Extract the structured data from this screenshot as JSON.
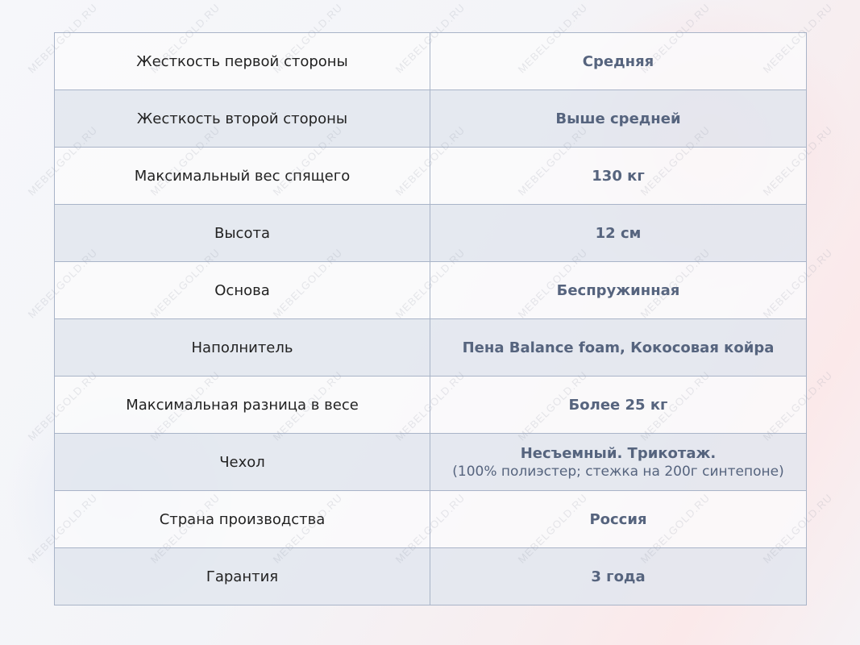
{
  "watermark": "MEBELGOLD.RU",
  "colors": {
    "value_text": "#56647e",
    "label_text": "#222222",
    "border": "#a9b4c8",
    "stripe": "#e2e6ef"
  },
  "rows": [
    {
      "label": "Жесткость первой стороны",
      "value": "Средняя"
    },
    {
      "label": "Жесткость второй стороны",
      "value": "Выше средней"
    },
    {
      "label": "Максимальный вес спящего",
      "value": "130 кг"
    },
    {
      "label": "Высота",
      "value": "12 см"
    },
    {
      "label": "Основа",
      "value": "Беспружинная"
    },
    {
      "label": "Наполнитель",
      "value": "Пена Balance foam, Кокосовая койра"
    },
    {
      "label": "Максимальная разница в весе",
      "value": "Более 25 кг"
    },
    {
      "label": "Чехол",
      "value": "Несъемный. Трикотаж.",
      "note": "(100% полиэстер; стежка на 200г синтепоне)"
    },
    {
      "label": "Страна производства",
      "value": "Россия"
    },
    {
      "label": "Гарантия",
      "value": "3 года"
    }
  ]
}
